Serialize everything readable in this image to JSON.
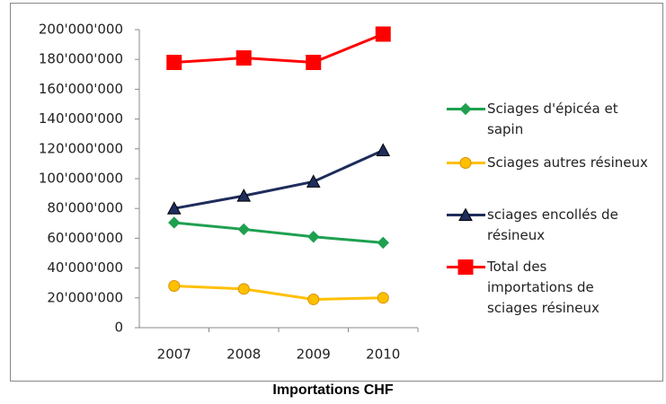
{
  "chart_data": {
    "type": "line",
    "title": "Importations CHF",
    "categories": [
      "2007",
      "2008",
      "2009",
      "2010"
    ],
    "series": [
      {
        "name": "Sciages d'épicéa et sapin",
        "color": "#1fa050",
        "marker": "diamond",
        "values": [
          70500000,
          66000000,
          61000000,
          57000000
        ]
      },
      {
        "name": "Sciages autres résineux",
        "color": "#ffc000",
        "marker": "circle",
        "values": [
          28000000,
          26000000,
          19000000,
          20000000
        ]
      },
      {
        "name": "sciages encollés de résineux",
        "color": "#1f2d5c",
        "marker": "triangle",
        "values": [
          80000000,
          88500000,
          98000000,
          119000000
        ]
      },
      {
        "name": "Total des importations de sciages résineux",
        "color": "#ff0000",
        "marker": "square",
        "values": [
          178000000,
          181000000,
          178000000,
          197000000
        ]
      }
    ],
    "ylim": [
      0,
      200000000
    ],
    "yticks": [
      0,
      {
        "value": 20000000,
        "label": "20'000'000"
      },
      {
        "value": 40000000,
        "label": "40'000'000"
      },
      {
        "value": 60000000,
        "label": "60'000'000"
      },
      {
        "value": 80000000,
        "label": "80'000'000"
      },
      {
        "value": 100000000,
        "label": "100'000'000"
      },
      {
        "value": 120000000,
        "label": "120'000'000"
      },
      {
        "value": 140000000,
        "label": "140'000'000"
      },
      {
        "value": 160000000,
        "label": "160'000'000"
      },
      {
        "value": 180000000,
        "label": "180'000'000"
      },
      {
        "value": 200000000,
        "label": "200'000'000"
      }
    ],
    "grid": false,
    "legend": "right"
  }
}
